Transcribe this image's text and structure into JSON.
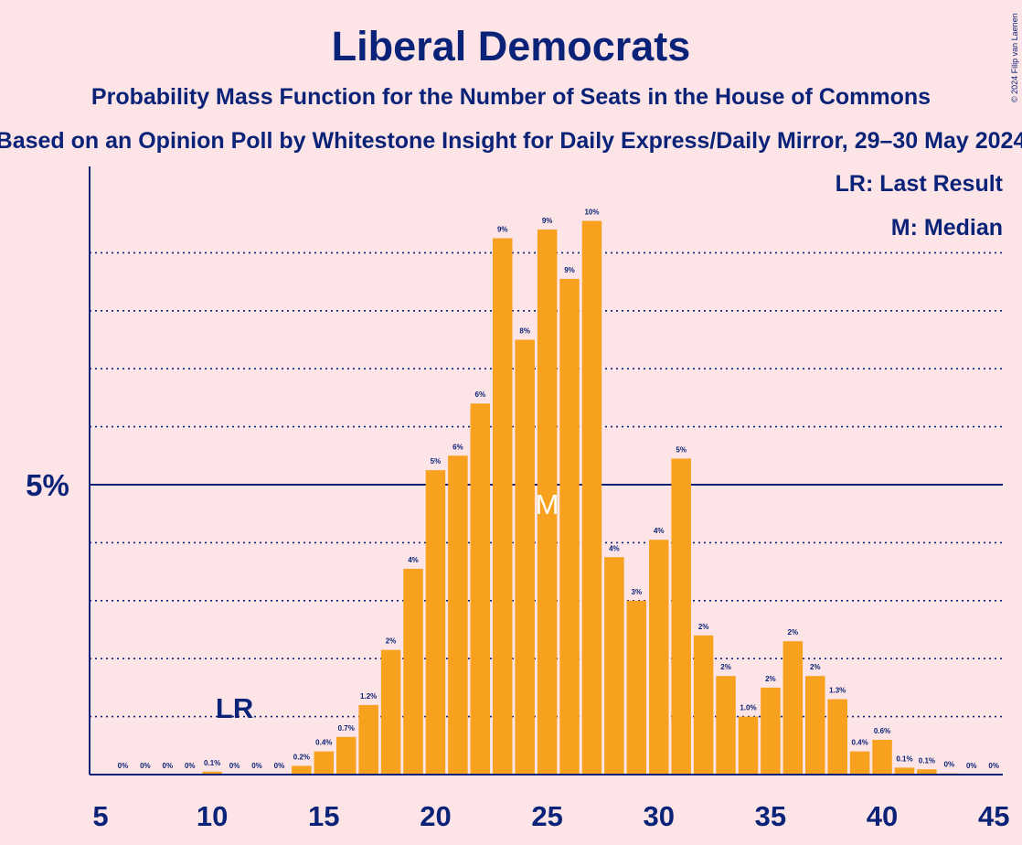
{
  "copyright": "© 2024 Filip van Laenen",
  "chart_data": {
    "type": "bar",
    "title": "Liberal Democrats",
    "subtitle": "Probability Mass Function for the Number of Seats in the House of Commons",
    "subtitle2": "Based on an Opinion Poll by Whitestone Insight for Daily Express/Daily Mirror, 29–30 May 2024",
    "xlim": [
      5,
      45
    ],
    "ylim": [
      0,
      10.5
    ],
    "xticks": [
      5,
      10,
      15,
      20,
      25,
      30,
      35,
      40,
      45
    ],
    "yticks": [
      {
        "value": 5,
        "label": "5%"
      }
    ],
    "minor_gridlines": [
      1,
      2,
      3,
      4,
      6,
      7,
      8,
      9
    ],
    "legend": {
      "position": "top-right",
      "entries": [
        "LR: Last Result",
        "M: Median"
      ]
    },
    "last_result": {
      "seat": 11,
      "label": "LR"
    },
    "median": {
      "seat": 25,
      "label": "M"
    },
    "categories": [
      6,
      7,
      8,
      9,
      10,
      11,
      12,
      13,
      14,
      15,
      16,
      17,
      18,
      19,
      20,
      21,
      22,
      23,
      24,
      25,
      26,
      27,
      28,
      29,
      30,
      31,
      32,
      33,
      34,
      35,
      36,
      37,
      38,
      39,
      40,
      41,
      42,
      43,
      44,
      45
    ],
    "values": [
      0,
      0,
      0,
      0,
      0.05,
      0,
      0,
      0,
      0.15,
      0.4,
      0.65,
      1.2,
      2.15,
      3.55,
      5.25,
      5.5,
      6.4,
      9.25,
      7.5,
      9.4,
      8.55,
      9.55,
      3.75,
      3.0,
      4.05,
      5.45,
      2.4,
      1.7,
      1.0,
      1.5,
      2.3,
      1.7,
      1.3,
      0.4,
      0.6,
      0.12,
      0.09,
      0.02,
      0,
      0
    ],
    "data_labels": [
      "0%",
      "0%",
      "0%",
      "0%",
      "0.1%",
      "0%",
      "0%",
      "0%",
      "0.2%",
      "0.4%",
      "0.7%",
      "1.2%",
      "2%",
      "4%",
      "5%",
      "6%",
      "6%",
      "9%",
      "8%",
      "9%",
      "9%",
      "10%",
      "4%",
      "3%",
      "4%",
      "5%",
      "2%",
      "2%",
      "1.0%",
      "2%",
      "2%",
      "2%",
      "1.3%",
      "0.4%",
      "0.6%",
      "0.1%",
      "0.1%",
      "0%",
      "0%",
      "0%"
    ]
  }
}
